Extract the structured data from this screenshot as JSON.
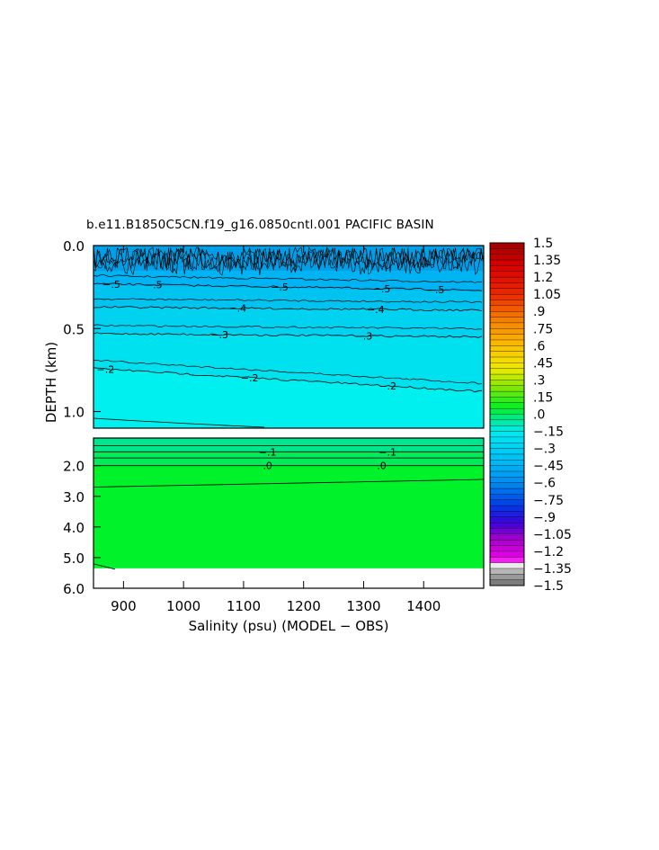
{
  "chart_data": {
    "type": "heatmap",
    "title": "b.e11.B1850C5CN.f19_g16.0850cntl.001 PACIFIC BASIN",
    "xlabel": "Salinity (psu) (MODEL − OBS)",
    "ylabel": "DEPTH (km)",
    "xlim": [
      850,
      1500
    ],
    "x_ticks": [
      900,
      1000,
      1100,
      1200,
      1300,
      1400
    ],
    "x_tick_labels": [
      "900",
      "1000",
      "1100",
      "1200",
      "1300",
      "1400"
    ],
    "upper_panel": {
      "ylim": [
        0.0,
        1.1
      ],
      "y_ticks": [
        0.0,
        0.5,
        1.0
      ],
      "y_tick_labels": [
        "0.0",
        "0.5",
        "1.0"
      ]
    },
    "lower_panel": {
      "ylim": [
        1.1,
        6.0
      ],
      "y_ticks": [
        2.0,
        3.0,
        4.0,
        5.0,
        6.0
      ],
      "y_tick_labels": [
        "2.0",
        "3.0",
        "4.0",
        "5.0",
        "6.0"
      ],
      "no_data_below_km": 5.35
    },
    "contours": [
      {
        "level": -0.5,
        "label": "−.5",
        "depth_km": [
          0.23,
          0.27
        ],
        "label_x": [
          880,
          950,
          1160,
          1330,
          1420
        ]
      },
      {
        "level": -0.4,
        "label": "−.4",
        "depth_km": [
          0.37,
          0.39
        ],
        "label_x": [
          1090,
          1320
        ]
      },
      {
        "level": -0.3,
        "label": "−.3",
        "depth_km": [
          0.53,
          0.55
        ],
        "label_x": [
          1060,
          1300
        ]
      },
      {
        "level": -0.2,
        "label": "−.2",
        "depth_km": [
          0.74,
          0.88
        ],
        "label_x": [
          870,
          1110,
          1340
        ]
      },
      {
        "level": -0.1,
        "label": "−.1",
        "depth_km": [
          1.55,
          1.55
        ],
        "label_x": [
          1140,
          1340
        ]
      },
      {
        "level": 0.0,
        "label": ".0",
        "depth_km": [
          2.0,
          2.0
        ],
        "label_x": [
          1140,
          1330
        ]
      }
    ],
    "colorbar": {
      "min": -1.5,
      "max": 1.5,
      "step": 0.05,
      "labels": [
        "1.5",
        "1.35",
        "1.2",
        "1.05",
        ".9",
        ".75",
        ".6",
        ".45",
        ".3",
        ".15",
        ".0",
        "−.15",
        "−.3",
        "−.45",
        "−.6",
        "−.75",
        "−.9",
        "−1.05",
        "−1.2",
        "−1.35",
        "−1.5"
      ]
    }
  }
}
